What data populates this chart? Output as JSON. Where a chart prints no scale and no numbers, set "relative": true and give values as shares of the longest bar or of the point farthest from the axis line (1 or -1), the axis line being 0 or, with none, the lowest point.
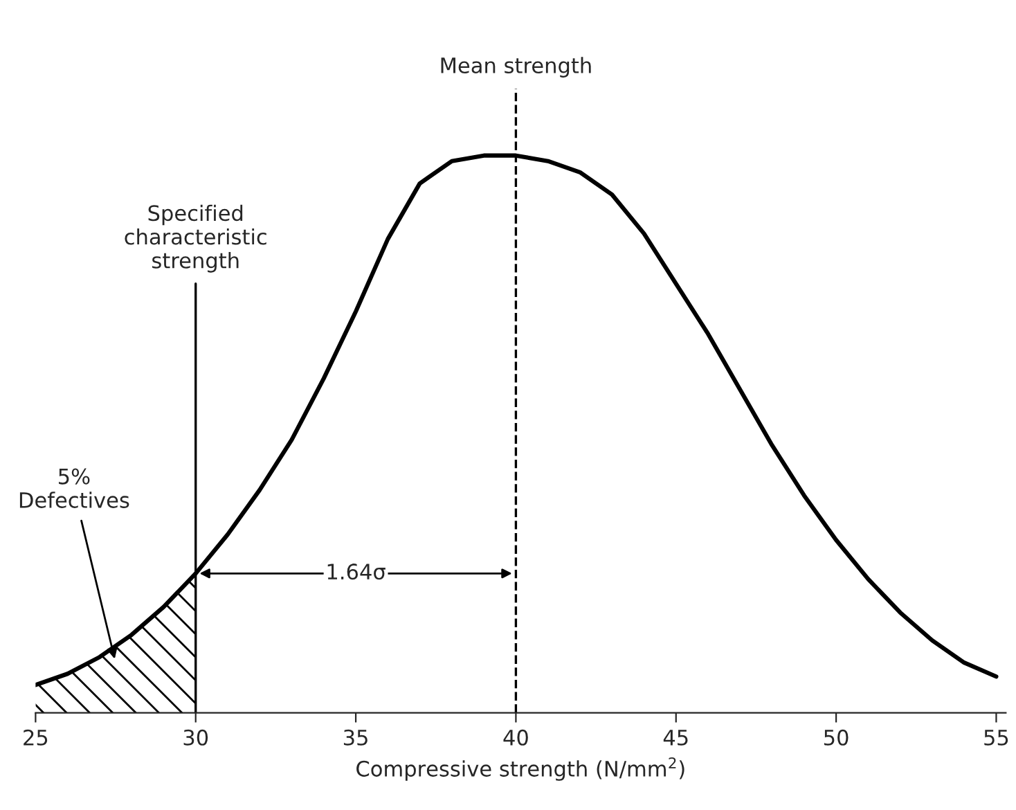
{
  "chart_data": {
    "type": "line",
    "relative": true,
    "xlabel": "Compressive strength (N/mm$^{2}$)",
    "xlim": [
      25,
      55.3
    ],
    "xticks": [
      25,
      30,
      35,
      40,
      45,
      50,
      55
    ],
    "series": [
      {
        "color": "#000000",
        "x": [
          25,
          26,
          27,
          28,
          29,
          30,
          31,
          32,
          33,
          34,
          35,
          36,
          37,
          38,
          39,
          40,
          41,
          42,
          43,
          44,
          45,
          46,
          47,
          48,
          49,
          50,
          51,
          52,
          53,
          54,
          55
        ],
        "values": [
          0.05,
          0.07,
          0.1,
          0.14,
          0.19,
          0.25,
          0.32,
          0.4,
          0.49,
          0.6,
          0.72,
          0.85,
          0.95,
          0.99,
          1.0,
          1.0,
          0.99,
          0.97,
          0.93,
          0.86,
          0.77,
          0.68,
          0.58,
          0.48,
          0.39,
          0.31,
          0.24,
          0.18,
          0.13,
          0.09,
          0.065
        ]
      },
      {
        "type": "area",
        "color": "#000000",
        "x": [
          25,
          26,
          27,
          28,
          29,
          30
        ],
        "values": [
          0.05,
          0.07,
          0.1,
          0.14,
          0.19,
          0.25
        ]
      }
    ],
    "ref_lines": [
      {
        "axis": "x",
        "value": 30,
        "label": "Specified\ncharacteristic\nstrength",
        "line_style": "solid"
      },
      {
        "axis": "x",
        "value": 40,
        "label": "Mean strength",
        "line_style": "dashed"
      }
    ],
    "annotations": [
      "5% Defectives",
      "1.64σ"
    ],
    "grid": false,
    "legend": false
  }
}
